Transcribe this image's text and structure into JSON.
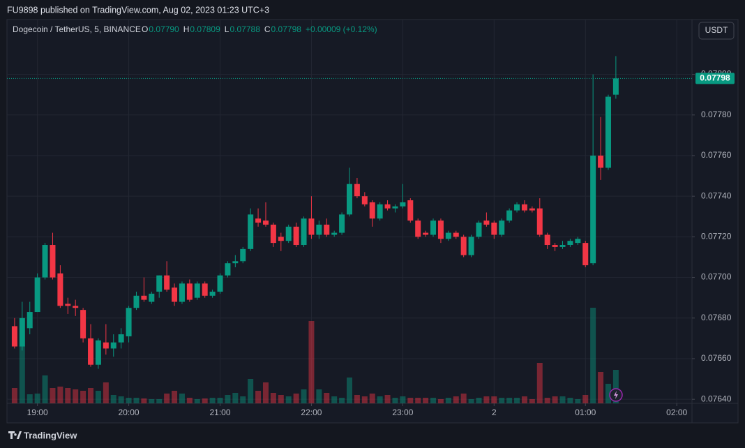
{
  "header": {
    "publisher": "FU9898 published on TradingView.com, Aug 02, 2023 01:23 UTC+3"
  },
  "footer": {
    "brand": "TradingView"
  },
  "chart_data": {
    "type": "candlestick",
    "title": "Dogecoin / TetherUS, 5, BINANCE",
    "ohlc_legend": [
      {
        "key": "O",
        "value": "0.07790"
      },
      {
        "key": "H",
        "value": "0.07809"
      },
      {
        "key": "L",
        "value": "0.07788"
      },
      {
        "key": "C",
        "value": "0.07798"
      }
    ],
    "change": "+0.00009 (+0.12%)",
    "currency": "USDT",
    "up_color": "#089981",
    "down_color": "#f23645",
    "x": [
      "18:45",
      "18:50",
      "18:55",
      "19:00",
      "19:05",
      "19:10",
      "19:15",
      "19:20",
      "19:25",
      "19:30",
      "19:35",
      "19:40",
      "19:45",
      "19:50",
      "19:55",
      "20:00",
      "20:05",
      "20:10",
      "20:15",
      "20:20",
      "20:25",
      "20:30",
      "20:35",
      "20:40",
      "20:45",
      "20:50",
      "20:55",
      "21:00",
      "21:05",
      "21:10",
      "21:15",
      "21:20",
      "21:25",
      "21:30",
      "21:35",
      "21:40",
      "21:45",
      "21:50",
      "21:55",
      "22:00",
      "22:05",
      "22:10",
      "22:15",
      "22:20",
      "22:25",
      "22:30",
      "22:35",
      "22:40",
      "22:45",
      "22:50",
      "22:55",
      "23:00",
      "23:05",
      "23:10",
      "23:15",
      "23:20",
      "23:25",
      "23:30",
      "23:35",
      "23:40",
      "23:45",
      "23:50",
      "23:55",
      "00:00",
      "00:05",
      "00:10",
      "00:15",
      "00:20",
      "00:25",
      "00:30",
      "00:35",
      "00:40",
      "00:45",
      "00:50",
      "00:55",
      "01:00",
      "01:05",
      "01:10",
      "01:15",
      "01:20"
    ],
    "open": [
      0.07676,
      0.07666,
      0.07675,
      0.07683,
      0.077,
      0.07716,
      0.07702,
      0.07687,
      0.07686,
      0.07684,
      0.0767,
      0.07657,
      0.07668,
      0.07665,
      0.07668,
      0.07671,
      0.07685,
      0.07691,
      0.07688,
      0.07693,
      0.07701,
      0.07695,
      0.07688,
      0.07697,
      0.0769,
      0.07697,
      0.07691,
      0.07693,
      0.07701,
      0.07707,
      0.07708,
      0.07714,
      0.07729,
      0.07728,
      0.07726,
      0.0772,
      0.07718,
      0.07725,
      0.07716,
      0.07729,
      0.07721,
      0.07726,
      0.07721,
      0.07722,
      0.07731,
      0.07746,
      0.0774,
      0.07737,
      0.07729,
      0.07736,
      0.07734,
      0.07735,
      0.07738,
      0.07728,
      0.07722,
      0.07721,
      0.07728,
      0.07719,
      0.07722,
      0.0772,
      0.07711,
      0.0772,
      0.07728,
      0.07727,
      0.07721,
      0.07728,
      0.07733,
      0.07736,
      0.07734,
      0.07734,
      0.07721,
      0.07716,
      0.07715,
      0.07716,
      0.07717,
      0.07717,
      0.07707,
      0.0776,
      0.07754,
      0.0779
    ],
    "high": [
      0.0768,
      0.07688,
      0.07688,
      0.07702,
      0.07717,
      0.07722,
      0.07706,
      0.0769,
      0.07689,
      0.07685,
      0.07677,
      0.0767,
      0.07677,
      0.07672,
      0.07675,
      0.07686,
      0.07693,
      0.077,
      0.07693,
      0.07701,
      0.07708,
      0.07697,
      0.07698,
      0.07699,
      0.07698,
      0.07698,
      0.07694,
      0.07702,
      0.07708,
      0.07711,
      0.07715,
      0.07734,
      0.07734,
      0.07737,
      0.07727,
      0.07722,
      0.07726,
      0.07727,
      0.0773,
      0.0774,
      0.07728,
      0.07729,
      0.07723,
      0.07732,
      0.07754,
      0.07749,
      0.07742,
      0.07738,
      0.07737,
      0.07738,
      0.07736,
      0.07746,
      0.07739,
      0.07729,
      0.07723,
      0.07729,
      0.07729,
      0.07723,
      0.07723,
      0.07721,
      0.07721,
      0.07728,
      0.07732,
      0.07728,
      0.07729,
      0.07734,
      0.07737,
      0.07738,
      0.07735,
      0.07739,
      0.07722,
      0.07717,
      0.07718,
      0.07719,
      0.0772,
      0.07718,
      0.078,
      0.07779,
      0.0779,
      0.07809
    ],
    "low": [
      0.07665,
      0.07664,
      0.07672,
      0.07683,
      0.07699,
      0.07699,
      0.07685,
      0.07682,
      0.07681,
      0.07668,
      0.07656,
      0.07655,
      0.07662,
      0.07661,
      0.07665,
      0.07668,
      0.07684,
      0.07688,
      0.07687,
      0.0769,
      0.07693,
      0.07686,
      0.07687,
      0.07688,
      0.07689,
      0.0769,
      0.0769,
      0.07692,
      0.077,
      0.07705,
      0.07707,
      0.07713,
      0.07725,
      0.07725,
      0.07715,
      0.07713,
      0.07717,
      0.07715,
      0.07715,
      0.07719,
      0.07719,
      0.0772,
      0.0772,
      0.07721,
      0.0773,
      0.07739,
      0.07735,
      0.07725,
      0.07728,
      0.07733,
      0.07732,
      0.07734,
      0.07727,
      0.07719,
      0.0772,
      0.0772,
      0.07717,
      0.07718,
      0.07719,
      0.0771,
      0.0771,
      0.07719,
      0.07725,
      0.07719,
      0.0772,
      0.07727,
      0.07732,
      0.07732,
      0.07732,
      0.0772,
      0.07714,
      0.07713,
      0.07714,
      0.07715,
      0.07716,
      0.07705,
      0.07706,
      0.07748,
      0.07753,
      0.07788
    ],
    "close": [
      0.07666,
      0.0768,
      0.07683,
      0.077,
      0.07716,
      0.077,
      0.07686,
      0.07686,
      0.07685,
      0.0767,
      0.07657,
      0.07669,
      0.07665,
      0.07668,
      0.07672,
      0.07685,
      0.07691,
      0.07689,
      0.07692,
      0.07701,
      0.07694,
      0.07688,
      0.07697,
      0.07689,
      0.07697,
      0.07691,
      0.07693,
      0.07701,
      0.07707,
      0.07708,
      0.07714,
      0.07731,
      0.07727,
      0.07726,
      0.07717,
      0.07718,
      0.07725,
      0.07716,
      0.07729,
      0.07721,
      0.07726,
      0.07721,
      0.07722,
      0.07731,
      0.07746,
      0.0774,
      0.07736,
      0.07729,
      0.07736,
      0.07734,
      0.07735,
      0.07737,
      0.07728,
      0.0772,
      0.07721,
      0.07728,
      0.07719,
      0.07722,
      0.0772,
      0.07711,
      0.0772,
      0.07727,
      0.07726,
      0.07721,
      0.07728,
      0.07733,
      0.07736,
      0.07733,
      0.07733,
      0.07721,
      0.07716,
      0.07715,
      0.07716,
      0.07718,
      0.07719,
      0.07706,
      0.0776,
      0.07754,
      0.07789,
      0.07798
    ],
    "volume": [
      22,
      83,
      13,
      14,
      40,
      22,
      24,
      22,
      20,
      18,
      22,
      18,
      30,
      12,
      10,
      8,
      8,
      7,
      6,
      6,
      14,
      18,
      14,
      8,
      6,
      7,
      8,
      8,
      12,
      15,
      10,
      35,
      18,
      30,
      15,
      12,
      10,
      14,
      20,
      118,
      20,
      15,
      10,
      8,
      37,
      12,
      10,
      14,
      10,
      12,
      8,
      10,
      8,
      8,
      8,
      8,
      6,
      8,
      10,
      14,
      6,
      8,
      10,
      10,
      8,
      8,
      8,
      10,
      6,
      58,
      8,
      10,
      10,
      8,
      6,
      12,
      137,
      45,
      28,
      48
    ],
    "volume_lim": [
      0,
      150
    ],
    "ylim": [
      0.07638,
      0.07827
    ],
    "yticks": [
      {
        "value": 0.0764,
        "label": "0.07640"
      },
      {
        "value": 0.0766,
        "label": "0.07660"
      },
      {
        "value": 0.0768,
        "label": "0.07680"
      },
      {
        "value": 0.077,
        "label": "0.07700"
      },
      {
        "value": 0.0772,
        "label": "0.07720"
      },
      {
        "value": 0.0774,
        "label": "0.07740"
      },
      {
        "value": 0.0776,
        "label": "0.07760"
      },
      {
        "value": 0.0778,
        "label": "0.07780"
      },
      {
        "value": 0.078,
        "label": "0.07800"
      }
    ],
    "xlim": [
      "18:40",
      "02:10"
    ],
    "xticks": [
      "19:00",
      "20:00",
      "21:00",
      "22:00",
      "23:00",
      {
        "value": "00:00",
        "label": "2"
      },
      "01:00",
      "02:00"
    ],
    "grid": true
  }
}
